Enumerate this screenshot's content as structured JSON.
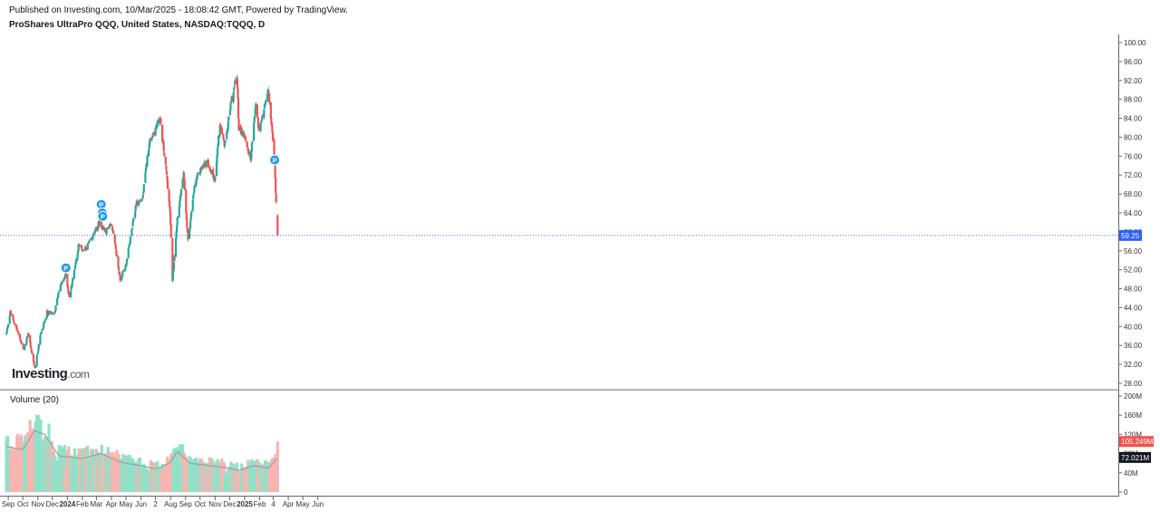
{
  "header": {
    "published": "Published on Investing.com, 10/Mar/2025 - 18:08:42 GMT, Powered by TradingView.",
    "symbol": "ProShares UltraPro QQQ, United States, NASDAQ:TQQQ, D"
  },
  "logo": {
    "brand": "Investing",
    "suffix": ".com"
  },
  "volume_panel": {
    "label": "Volume (20)"
  },
  "colors": {
    "up": "#26a69a",
    "down": "#ef5350",
    "vol_up": "#8ee2c8",
    "vol_down": "#f8b4b0",
    "ma": "#9e9e9e",
    "price_line": "#2962ff"
  },
  "chart_data": [
    {
      "type": "candlestick",
      "title": "ProShares UltraPro QQQ, United States, NASDAQ:TQQQ, D",
      "x_ticks": [
        "Sep",
        "Oct",
        "Nov",
        "Dec",
        "2024",
        "Feb",
        "Mar",
        "Apr",
        "May",
        "Jun",
        "2",
        "Aug",
        "Sep",
        "Oct",
        "Nov",
        "Dec",
        "2025",
        "Feb",
        "4",
        "Apr",
        "May",
        "Jun"
      ],
      "y_ticks": [
        "100.00",
        "96.00",
        "92.00",
        "88.00",
        "84.00",
        "80.00",
        "76.00",
        "72.00",
        "68.00",
        "64.00",
        "60.00",
        "56.00",
        "52.00",
        "48.00",
        "44.00",
        "40.00",
        "36.00",
        "32.00",
        "28.00"
      ],
      "ylim": [
        28,
        100
      ],
      "last_price_label": "59.25",
      "last_price": 59.25,
      "close_path": [
        [
          "2023-08-28",
          38.5
        ],
        [
          "2023-09-05",
          43.0
        ],
        [
          "2023-09-20",
          39.0
        ],
        [
          "2023-10-03",
          35.0
        ],
        [
          "2023-10-12",
          38.5
        ],
        [
          "2023-10-26",
          31.0
        ],
        [
          "2023-11-06",
          38.0
        ],
        [
          "2023-11-20",
          43.0
        ],
        [
          "2023-12-05",
          42.5
        ],
        [
          "2023-12-15",
          48.0
        ],
        [
          "2023-12-29",
          51.0
        ],
        [
          "2024-01-05",
          46.0
        ],
        [
          "2024-01-24",
          57.0
        ],
        [
          "2024-02-05",
          56.0
        ],
        [
          "2024-02-20",
          58.5
        ],
        [
          "2024-03-07",
          62.0
        ],
        [
          "2024-03-20",
          60.0
        ],
        [
          "2024-04-01",
          62.0
        ],
        [
          "2024-04-19",
          50.0
        ],
        [
          "2024-05-01",
          53.0
        ],
        [
          "2024-05-22",
          66.0
        ],
        [
          "2024-06-04",
          67.0
        ],
        [
          "2024-06-18",
          79.0
        ],
        [
          "2024-07-10",
          84.0
        ],
        [
          "2024-07-24",
          72.0
        ],
        [
          "2024-07-31",
          64.0
        ],
        [
          "2024-08-05",
          50.0
        ],
        [
          "2024-08-15",
          63.0
        ],
        [
          "2024-08-28",
          72.0
        ],
        [
          "2024-09-06",
          58.0
        ],
        [
          "2024-09-20",
          70.0
        ],
        [
          "2024-10-01",
          73.0
        ],
        [
          "2024-10-15",
          75.0
        ],
        [
          "2024-10-31",
          71.0
        ],
        [
          "2024-11-11",
          83.0
        ],
        [
          "2024-11-21",
          78.0
        ],
        [
          "2024-12-05",
          88.0
        ],
        [
          "2024-12-16",
          93.0
        ],
        [
          "2024-12-20",
          82.0
        ],
        [
          "2025-01-02",
          80.0
        ],
        [
          "2025-01-13",
          75.0
        ],
        [
          "2025-01-24",
          87.0
        ],
        [
          "2025-01-31",
          81.0
        ],
        [
          "2025-02-10",
          86.0
        ],
        [
          "2025-02-19",
          90.0
        ],
        [
          "2025-03-03",
          76.0
        ],
        [
          "2025-03-10",
          59.25
        ]
      ],
      "markers": [
        {
          "label": "P",
          "date": "2023-12-29",
          "price": 52.4
        },
        {
          "label": "P",
          "date": "2024-03-11",
          "price": 65.8
        },
        {
          "label": "P",
          "date": "2024-03-13",
          "price": 64.0
        },
        {
          "label": "P",
          "date": "2024-03-14",
          "price": 63.3
        },
        {
          "label": "P",
          "date": "2025-03-04",
          "price": 75.2
        }
      ]
    },
    {
      "type": "bar",
      "title": "Volume (20)",
      "y_ticks": [
        "200M",
        "160M",
        "120M",
        "80M",
        "40M",
        "0"
      ],
      "ylim": [
        0,
        200
      ],
      "unit": "M",
      "last_volume_label": "105.249M",
      "ma_label": "72.021M",
      "ma_path": [
        [
          "2023-08-28",
          95
        ],
        [
          "2023-10-01",
          88
        ],
        [
          "2023-10-25",
          128
        ],
        [
          "2023-11-15",
          120
        ],
        [
          "2023-12-15",
          75
        ],
        [
          "2024-02-01",
          70
        ],
        [
          "2024-03-10",
          80
        ],
        [
          "2024-04-20",
          62
        ],
        [
          "2024-06-01",
          55
        ],
        [
          "2024-07-01",
          48
        ],
        [
          "2024-07-30",
          60
        ],
        [
          "2024-08-15",
          85
        ],
        [
          "2024-09-10",
          60
        ],
        [
          "2024-10-20",
          55
        ],
        [
          "2024-12-01",
          50
        ],
        [
          "2024-12-20",
          45
        ],
        [
          "2025-01-20",
          55
        ],
        [
          "2025-02-20",
          50
        ],
        [
          "2025-03-10",
          72
        ]
      ]
    }
  ]
}
